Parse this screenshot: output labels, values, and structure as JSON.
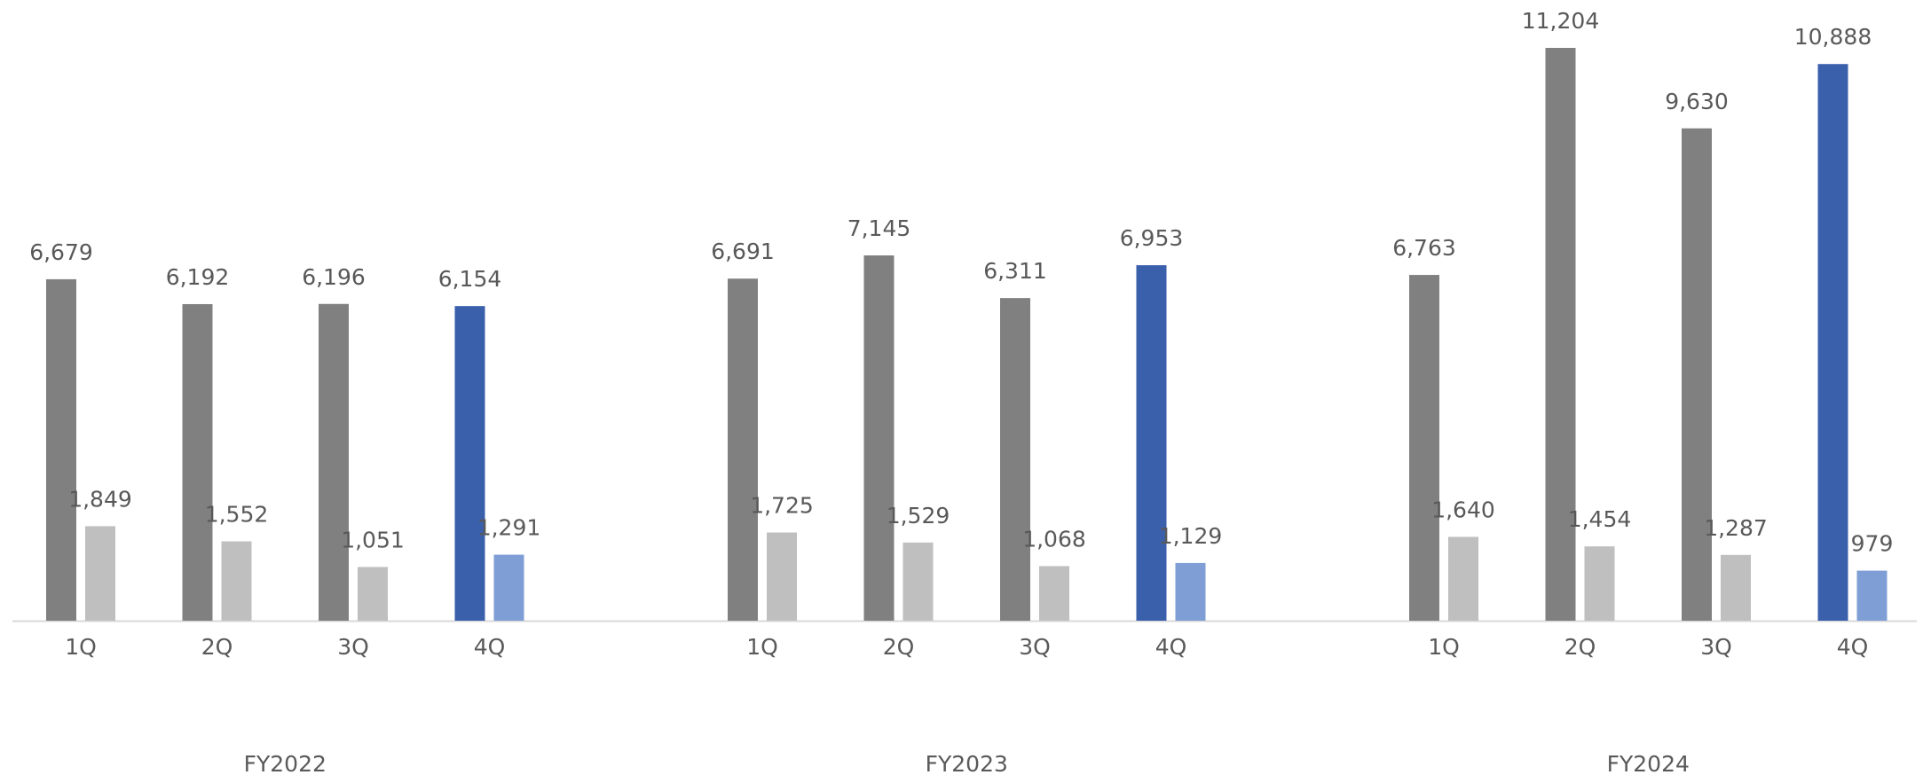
{
  "chart_data": {
    "type": "bar",
    "groups": [
      "FY2022",
      "FY2023",
      "FY2024"
    ],
    "quarters": [
      "1Q",
      "2Q",
      "3Q",
      "4Q"
    ],
    "primary_values": [
      [
        6679,
        6192,
        6196,
        6154
      ],
      [
        6691,
        7145,
        6311,
        6953
      ],
      [
        6763,
        11204,
        9630,
        10888
      ]
    ],
    "secondary_values": [
      [
        1849,
        1552,
        1051,
        1291
      ],
      [
        1725,
        1529,
        1068,
        1129
      ],
      [
        1640,
        1454,
        1287,
        979
      ]
    ],
    "highlight_quarter": "4Q",
    "ylim": [
      0,
      12000
    ],
    "grid": false,
    "legend": "none",
    "colors": {
      "primary": "#808080",
      "secondary": "#bfbfbf",
      "primary_highlight": "#3a5fab",
      "secondary_highlight": "#7f9ed6",
      "axis": "#d9d9d9",
      "text": "#595959"
    }
  }
}
